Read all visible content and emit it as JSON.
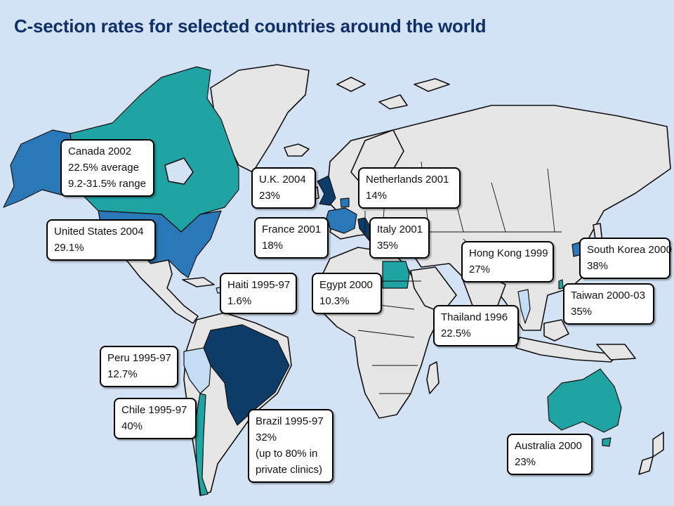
{
  "title": "C-section rates for selected countries around the world",
  "colors": {
    "ocean": "#d3e3f5",
    "land": "#e6e6e6",
    "title": "#0f2f6b",
    "rate_very_low": "#c4dcf4",
    "rate_low": "#2a78b8",
    "rate_mid": "#1fa3a3",
    "rate_high": "#0d3c68",
    "canada": "#1fa3a3"
  },
  "callouts": [
    {
      "key": "canada",
      "lines": [
        "Canada 2002",
        "22.5% average",
        "9.2-31.5% range"
      ]
    },
    {
      "key": "us",
      "lines": [
        "United States 2004",
        "29.1%"
      ]
    },
    {
      "key": "uk",
      "lines": [
        "U.K. 2004",
        "23%"
      ]
    },
    {
      "key": "netherlands",
      "lines": [
        "Netherlands 2001",
        "14%"
      ]
    },
    {
      "key": "france",
      "lines": [
        "France 2001",
        "18%"
      ]
    },
    {
      "key": "italy",
      "lines": [
        "Italy 2001",
        "35%"
      ]
    },
    {
      "key": "haiti",
      "lines": [
        "Haiti 1995-97",
        "1.6%"
      ]
    },
    {
      "key": "egypt",
      "lines": [
        "Egypt 2000",
        "10.3%"
      ]
    },
    {
      "key": "hongkong",
      "lines": [
        "Hong Kong 1999",
        "27%"
      ]
    },
    {
      "key": "southkorea",
      "lines": [
        "South Korea 2000",
        "38%"
      ]
    },
    {
      "key": "taiwan",
      "lines": [
        "Taiwan 2000-03",
        "35%"
      ]
    },
    {
      "key": "thailand",
      "lines": [
        "Thailand 1996",
        "22.5%"
      ]
    },
    {
      "key": "peru",
      "lines": [
        "Peru 1995-97",
        "12.7%"
      ]
    },
    {
      "key": "chile",
      "lines": [
        "Chile 1995-97",
        "40%"
      ]
    },
    {
      "key": "brazil",
      "lines": [
        "Brazil 1995-97",
        "32%",
        "(up to 80% in",
        "private clinics)"
      ]
    },
    {
      "key": "australia",
      "lines": [
        "Australia 2000",
        "23%"
      ]
    }
  ]
}
